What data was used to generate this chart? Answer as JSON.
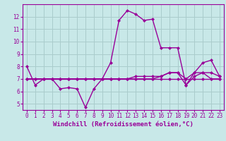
{
  "xlabel": "Windchill (Refroidissement éolien,°C)",
  "background_color": "#c8e8e8",
  "grid_color": "#aacccc",
  "line_color": "#990099",
  "x_hours": [
    0,
    1,
    2,
    3,
    4,
    5,
    6,
    7,
    8,
    9,
    10,
    11,
    12,
    13,
    14,
    15,
    16,
    17,
    18,
    19,
    20,
    21,
    22,
    23
  ],
  "series": [
    [
      8.0,
      6.5,
      7.0,
      7.0,
      6.2,
      6.3,
      6.2,
      4.7,
      6.2,
      7.0,
      8.3,
      11.7,
      12.5,
      12.2,
      11.7,
      11.8,
      9.5,
      9.5,
      9.5,
      6.5,
      7.5,
      8.3,
      8.5,
      7.2
    ],
    [
      7.0,
      7.0,
      7.0,
      7.0,
      7.0,
      7.0,
      7.0,
      7.0,
      7.0,
      7.0,
      7.0,
      7.0,
      7.0,
      7.0,
      7.0,
      7.0,
      7.0,
      7.0,
      7.0,
      7.0,
      7.0,
      7.0,
      7.0,
      7.0
    ],
    [
      7.0,
      7.0,
      7.0,
      7.0,
      7.0,
      7.0,
      7.0,
      7.0,
      7.0,
      7.0,
      7.0,
      7.0,
      7.0,
      7.2,
      7.2,
      7.2,
      7.2,
      7.5,
      7.5,
      7.0,
      7.5,
      7.5,
      7.5,
      7.2
    ],
    [
      7.0,
      7.0,
      7.0,
      7.0,
      7.0,
      7.0,
      7.0,
      7.0,
      7.0,
      7.0,
      7.0,
      7.0,
      7.0,
      7.0,
      7.0,
      7.0,
      7.2,
      7.5,
      7.5,
      6.5,
      7.2,
      7.5,
      7.0,
      7.0
    ]
  ],
  "ylim": [
    4.5,
    13.0
  ],
  "yticks": [
    5,
    6,
    7,
    8,
    9,
    10,
    11,
    12
  ],
  "xticks": [
    0,
    1,
    2,
    3,
    4,
    5,
    6,
    7,
    8,
    9,
    10,
    11,
    12,
    13,
    14,
    15,
    16,
    17,
    18,
    19,
    20,
    21,
    22,
    23
  ],
  "marker": "D",
  "markersize": 2,
  "linewidth": 1.0,
  "tick_fontsize": 5.5,
  "label_fontsize": 6.5
}
